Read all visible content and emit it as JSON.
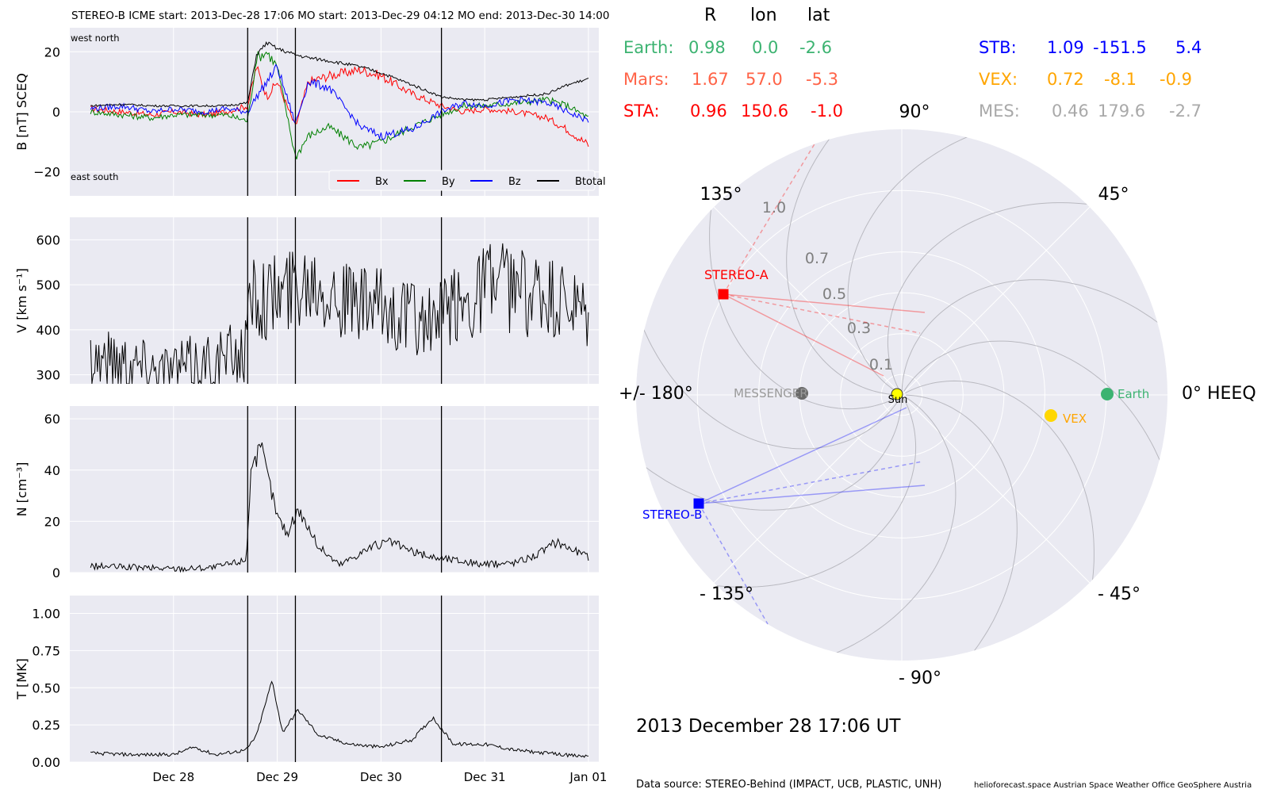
{
  "header": {
    "title_left": "STEREO-B    ICME start: 2013-Dec-28 17:06   MO start: 2013-Dec-29 04:12   MO end: 2013-Dec-30 14:00"
  },
  "positions": {
    "col_headers": [
      "R",
      "lon",
      "lat"
    ],
    "left_rows": [
      {
        "name": "Earth:",
        "R": "0.98",
        "lon": "0.0",
        "lat": "-2.6",
        "color": "#3cb371"
      },
      {
        "name": "Mars:",
        "R": "1.67",
        "lon": "57.0",
        "lat": "-5.3",
        "color": "#ff6347"
      },
      {
        "name": "STA:",
        "R": "0.96",
        "lon": "150.6",
        "lat": "-1.0",
        "color": "#ff0000"
      }
    ],
    "right_rows": [
      {
        "name": "STB:",
        "R": "1.09",
        "lon": "-151.5",
        "lat": "5.4",
        "color": "#0000ff"
      },
      {
        "name": "VEX:",
        "R": "0.72",
        "lon": "-8.1",
        "lat": "-0.9",
        "color": "#ffa500"
      },
      {
        "name": "MES:",
        "R": "0.46",
        "lon": "179.6",
        "lat": "-2.7",
        "color": "#a9a9a9"
      }
    ]
  },
  "polar": {
    "angle_labels": {
      "a90": "90°",
      "a45": "45°",
      "a135": "135°",
      "a0": "0° HEEQ",
      "a180": "+/- 180°",
      "am45": "- 45°",
      "am135": "- 135°",
      "am90": "- 90°"
    },
    "radial_ticks": [
      "0.1",
      "0.3",
      "0.5",
      "0.7",
      "1.0"
    ],
    "objects": {
      "sun": "Sun",
      "earth": "Earth",
      "vex": "VEX",
      "messenger": "MESSENGER",
      "stereo_a": "STEREO-A",
      "stereo_b": "STEREO-B"
    },
    "colors": {
      "sun": "#ffff00",
      "earth": "#3cb371",
      "vex": "#ffd700",
      "messenger": "#696969",
      "sta": "#ff0000",
      "stb": "#0000ff"
    }
  },
  "date_label": "2013 December 28  17:06 UT",
  "footer": {
    "source": "Data source: STEREO-Behind (IMPACT, UCB, PLASTIC, UNH)",
    "credits": "helioforecast.space   Austrian Space Weather Office   GeoSphere Austria"
  },
  "chart_data": [
    {
      "type": "line",
      "ylabel": "B [nT] SCEQ",
      "ylim": [
        -28,
        28
      ],
      "yticks": [
        "20",
        "0",
        "−20"
      ],
      "annotations": {
        "top_left": "west    north",
        "bottom_left": "east    south"
      },
      "legend": [
        "Bx",
        "By",
        "Bz",
        "Btotal"
      ],
      "legend_colors": [
        "#ff0000",
        "#008000",
        "#0000ff",
        "#000000"
      ],
      "x": [
        27.2,
        27.5,
        27.8,
        28.0,
        28.3,
        28.5,
        28.715,
        28.8,
        28.9,
        29.0,
        29.175,
        29.3,
        29.5,
        29.8,
        30.0,
        30.3,
        30.58,
        30.8,
        31.0,
        31.3,
        31.6,
        31.8,
        32.0
      ],
      "series": [
        {
          "name": "Bx",
          "values": [
            1,
            0,
            -1,
            0,
            -1,
            0,
            2,
            15,
            5,
            10,
            -5,
            10,
            12,
            14,
            12,
            6,
            2,
            0,
            1,
            0,
            -2,
            -6,
            -11
          ]
        },
        {
          "name": "By",
          "values": [
            0,
            -1,
            -2,
            -1,
            -1,
            -1,
            -3,
            18,
            20,
            15,
            -15,
            -8,
            -5,
            -12,
            -10,
            -5,
            -1,
            2,
            2,
            3,
            4,
            2,
            -2
          ]
        },
        {
          "name": "Bz",
          "values": [
            1,
            2,
            0,
            1,
            0,
            1,
            0,
            5,
            10,
            15,
            -4,
            10,
            8,
            -5,
            -8,
            -6,
            0,
            3,
            2,
            4,
            3,
            0,
            -3
          ]
        },
        {
          "name": "Btotal",
          "values": [
            2,
            2.5,
            2,
            2,
            2,
            2,
            3,
            19,
            23,
            21,
            19,
            18,
            17,
            15,
            13,
            9,
            5,
            4,
            4,
            5,
            6,
            9,
            11
          ]
        }
      ]
    },
    {
      "type": "line",
      "ylabel": "V [km s⁻¹]",
      "ylim": [
        280,
        650
      ],
      "yticks": [
        "600",
        "500",
        "400",
        "300"
      ],
      "x": [
        27.2,
        27.5,
        27.8,
        28.0,
        28.3,
        28.5,
        28.7,
        28.75,
        28.9,
        29.1,
        29.2,
        29.4,
        29.6,
        29.8,
        30.0,
        30.3,
        30.5,
        30.6,
        30.8,
        30.9,
        31.0,
        31.2,
        31.5,
        31.8,
        32.0
      ],
      "values": [
        340,
        335,
        318,
        312,
        325,
        335,
        355,
        495,
        470,
        485,
        510,
        525,
        470,
        450,
        445,
        425,
        410,
        430,
        465,
        470,
        510,
        495,
        475,
        445,
        415
      ]
    },
    {
      "type": "line",
      "ylabel": "N [cm⁻³]",
      "ylim": [
        0,
        65
      ],
      "yticks": [
        "60",
        "40",
        "20",
        "0"
      ],
      "x": [
        27.2,
        27.6,
        28.0,
        28.4,
        28.7,
        28.75,
        28.85,
        29.0,
        29.1,
        29.2,
        29.4,
        29.6,
        29.9,
        30.1,
        30.3,
        30.5,
        30.7,
        31.0,
        31.3,
        31.5,
        31.7,
        31.9,
        32.0
      ],
      "values": [
        2.5,
        2,
        1.5,
        2,
        5,
        42,
        48,
        22,
        15,
        25,
        10,
        3,
        10,
        12,
        8,
        6,
        5,
        3,
        4,
        7,
        12,
        8,
        6
      ]
    },
    {
      "type": "line",
      "ylabel": "T [MK]",
      "ylim": [
        0,
        1.12
      ],
      "yticks": [
        "1.00",
        "0.75",
        "0.50",
        "0.25",
        "0.00"
      ],
      "x": [
        27.2,
        27.6,
        28.0,
        28.2,
        28.4,
        28.7,
        28.8,
        28.95,
        29.05,
        29.2,
        29.4,
        29.7,
        30.0,
        30.3,
        30.5,
        30.7,
        31.0,
        31.3,
        31.6,
        31.9,
        32.0
      ],
      "values": [
        0.06,
        0.05,
        0.05,
        0.1,
        0.05,
        0.08,
        0.18,
        0.55,
        0.2,
        0.35,
        0.18,
        0.12,
        0.1,
        0.15,
        0.3,
        0.12,
        0.12,
        0.08,
        0.06,
        0.04,
        0.04
      ]
    }
  ],
  "time_axis": {
    "ticks": [
      {
        "x": 28,
        "label": "Dec 28"
      },
      {
        "x": 29,
        "label": "Dec 29"
      },
      {
        "x": 30,
        "label": "Dec 30"
      },
      {
        "x": 31,
        "label": "Dec 31"
      },
      {
        "x": 32,
        "label": "Jan 01"
      }
    ],
    "xlim": [
      27.0,
      32.1
    ],
    "event_lines": [
      28.715,
      29.175,
      30.583
    ]
  }
}
